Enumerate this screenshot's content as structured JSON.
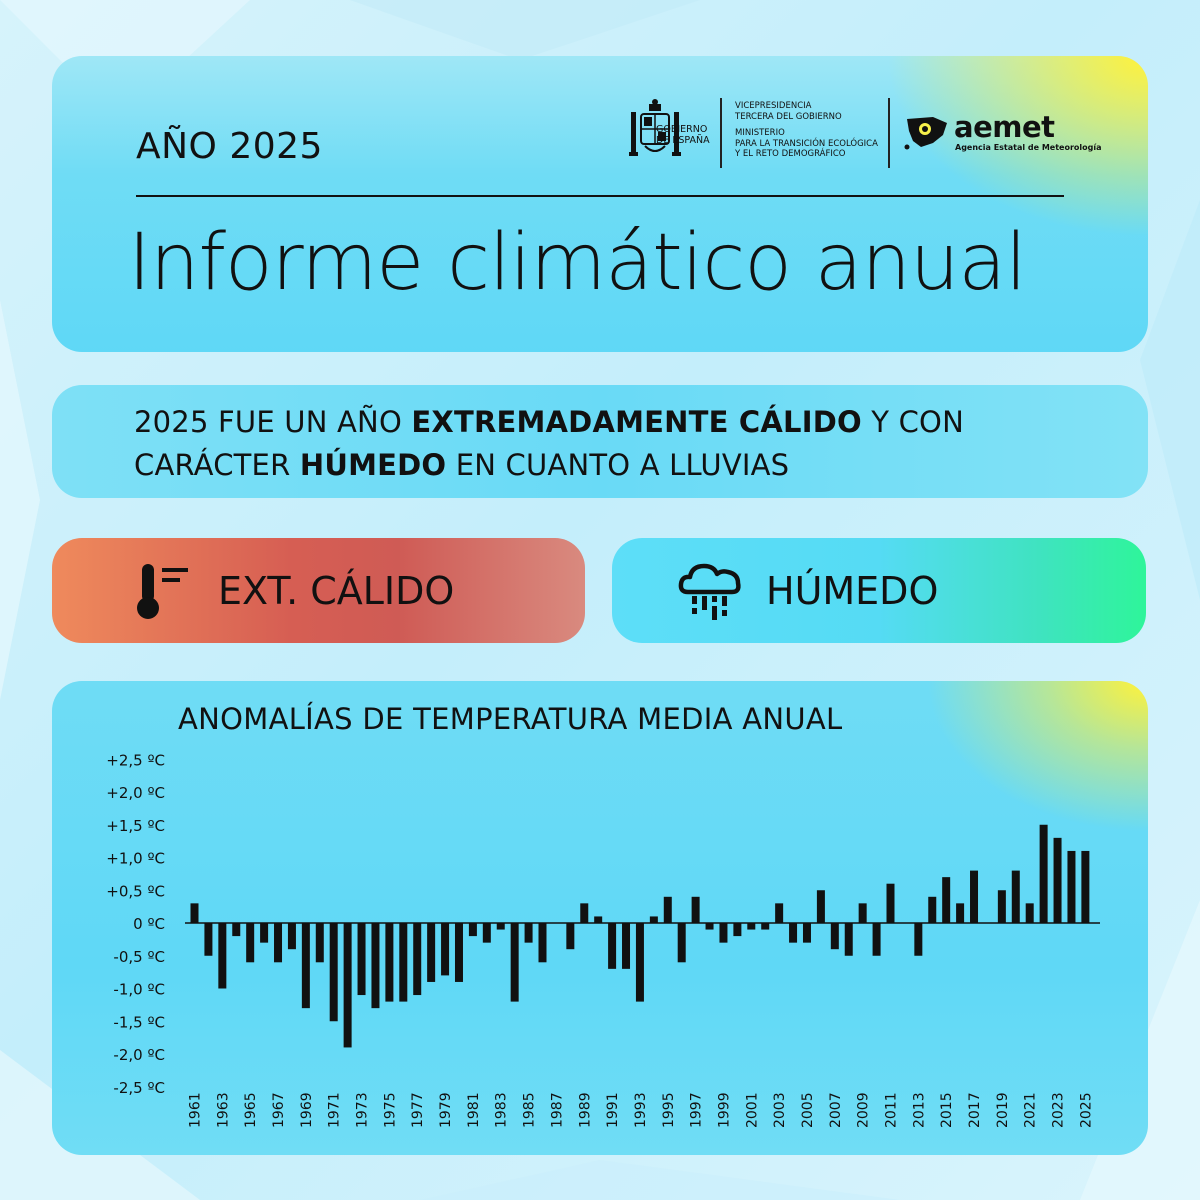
{
  "header": {
    "year_label": "AÑO 2025",
    "title": "Informe climático anual",
    "gov_logo_text": [
      "GOBIERNO",
      "DE ESPAÑA"
    ],
    "ministry_text": [
      "VICEPRESIDENCIA",
      "TERCERA DEL GOBIERNO",
      "",
      "MINISTERIO",
      "PARA LA TRANSICIÓN ECOLÓGICA",
      "Y EL RETO DEMOGRÁFICO"
    ],
    "agency_name": "aemet",
    "agency_subtitle": "Agencia Estatal de Meteorología"
  },
  "summary": {
    "line1_pre": "2025 FUE UN AÑO ",
    "line1_bold": "EXTREMADAMENTE CÁLIDO",
    "line1_post": " Y CON",
    "line2_pre": "CARÁCTER ",
    "line2_bold": "HÚMEDO",
    "line2_post": " EN CUANTO A LLUVIAS"
  },
  "status": {
    "temperature_label": "EXT. CÁLIDO",
    "temperature_icon": "thermometer-icon",
    "precipitation_label": "HÚMEDO",
    "precipitation_icon": "rain-cloud-icon"
  },
  "colors": {
    "warm": "#d65e53",
    "humid": "#2ef59a",
    "accent_yellow": "#fff23a",
    "bars": "#111111"
  },
  "chart_data": {
    "type": "bar",
    "title": "ANOMALÍAS DE TEMPERATURA MEDIA ANUAL",
    "xlabel": "",
    "ylabel": "",
    "ylim": [
      -2.5,
      2.5
    ],
    "y_ticks": [
      2.5,
      2.0,
      1.5,
      1.0,
      0.5,
      0,
      -0.5,
      -1.0,
      -1.5,
      -2.0,
      -2.5
    ],
    "y_tick_labels": [
      "+2,5 ºC",
      "+2,0 ºC",
      "+1,5 ºC",
      "+1,0 ºC",
      "+0,5 ºC",
      "0 ºC",
      "-0,5 ºC",
      "-1,0 ºC",
      "-1,5 ºC",
      "-2,0 ºC",
      "-2,5 ºC"
    ],
    "x_tick_labels": [
      "1961",
      "1963",
      "1965",
      "1967",
      "1969",
      "1971",
      "1973",
      "1975",
      "1977",
      "1979",
      "1981",
      "1983",
      "1985",
      "1987",
      "1989",
      "1991",
      "1993",
      "1995",
      "1997",
      "1999",
      "2001",
      "2003",
      "2005",
      "2007",
      "2009",
      "2011",
      "2013",
      "2015",
      "2017",
      "2019",
      "2021",
      "2023",
      "2025"
    ],
    "categories": [
      1961,
      1962,
      1963,
      1964,
      1965,
      1966,
      1967,
      1968,
      1969,
      1970,
      1971,
      1972,
      1973,
      1974,
      1975,
      1976,
      1977,
      1978,
      1979,
      1980,
      1981,
      1982,
      1983,
      1984,
      1985,
      1986,
      1987,
      1988,
      1989,
      1990,
      1991,
      1992,
      1993,
      1994,
      1995,
      1996,
      1997,
      1998,
      1999,
      2000,
      2001,
      2002,
      2003,
      2004,
      2005,
      2006,
      2007,
      2008,
      2009,
      2010,
      2011,
      2012,
      2013,
      2014,
      2015,
      2016,
      2017,
      2018,
      2019,
      2020,
      2021,
      2022,
      2023,
      2024,
      2025
    ],
    "values": [
      0.3,
      -0.5,
      -1.0,
      -0.2,
      -0.6,
      -0.3,
      -0.6,
      -0.4,
      -1.3,
      -0.6,
      -1.5,
      -1.9,
      -1.1,
      -1.3,
      -1.2,
      -1.2,
      -1.1,
      -0.9,
      -0.8,
      -0.9,
      -0.2,
      -0.3,
      -0.1,
      -1.2,
      -0.3,
      -0.6,
      0.0,
      -0.4,
      0.3,
      0.1,
      -0.7,
      -0.7,
      -1.2,
      0.1,
      0.4,
      -0.6,
      0.4,
      -0.1,
      -0.3,
      -0.2,
      -0.1,
      -0.1,
      0.3,
      -0.3,
      -0.3,
      0.5,
      -0.4,
      -0.5,
      0.3,
      -0.5,
      0.6,
      0.0,
      -0.5,
      0.4,
      0.7,
      0.3,
      0.8,
      0.0,
      0.5,
      0.8,
      0.3,
      1.5,
      1.3,
      1.1,
      1.1
    ]
  }
}
